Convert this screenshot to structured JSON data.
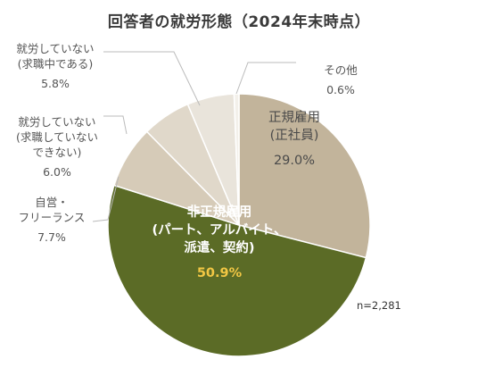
{
  "chart_data": {
    "type": "pie",
    "title": "回答者の就労形態（2024年末時点）",
    "note": "n=2,281",
    "start_angle_deg": 0,
    "direction": "clockwise",
    "slices": [
      {
        "label_lines": [
          "正規雇用",
          "(正社員)"
        ],
        "value": 29.0,
        "value_label": "29.0%",
        "color": "#c2b49b"
      },
      {
        "label_lines": [
          "非正規雇用",
          "(パート、アルバイト、",
          "派遣、契約)"
        ],
        "value": 50.9,
        "value_label": "50.9%",
        "color": "#5b6b26"
      },
      {
        "label_lines": [
          "自営・",
          "フリーランス"
        ],
        "value": 7.7,
        "value_label": "7.7%",
        "color": "#d6cbb8"
      },
      {
        "label_lines": [
          "就労していない",
          "(求職していない",
          "できない)"
        ],
        "value": 6.0,
        "value_label": "6.0%",
        "color": "#e0d8ca"
      },
      {
        "label_lines": [
          "就労していない",
          "(求職中である)"
        ],
        "value": 5.8,
        "value_label": "5.8%",
        "color": "#e9e4db"
      },
      {
        "label_lines": [
          "その他"
        ],
        "value": 0.6,
        "value_label": "0.6%",
        "color": "#f3f0ea"
      }
    ],
    "styles": {
      "label_color": "#555555",
      "inner_label_color_light": "#4a4a4a",
      "inner_label_color_dark": "#ffffff",
      "highlight_value_color": "#f2c744",
      "leader_line_color": "#bbbbbb"
    }
  }
}
